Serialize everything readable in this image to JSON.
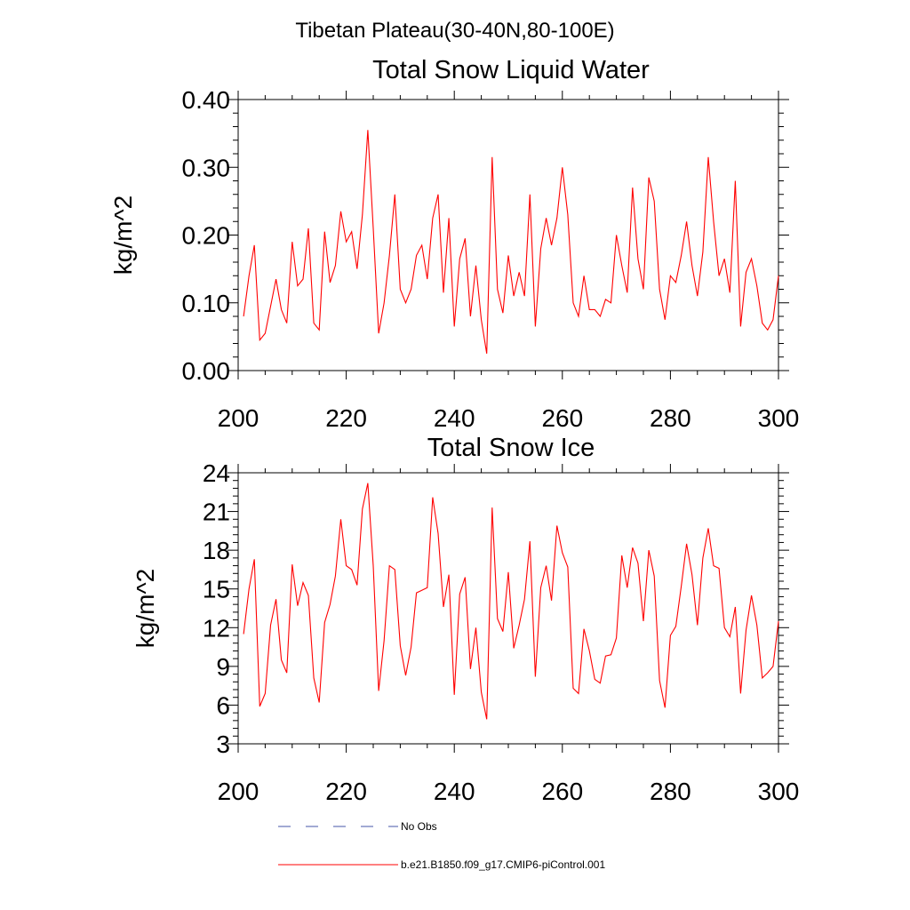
{
  "figure": {
    "title": "Tibetan Plateau(30-40N,80-100E)"
  },
  "chart_data": [
    {
      "type": "line",
      "title": "Total Snow Liquid Water",
      "xlabel": "",
      "ylabel": "kg/m^2",
      "xlim": [
        200,
        300
      ],
      "ylim": [
        0,
        0.4
      ],
      "xticks": [
        200,
        220,
        240,
        260,
        280,
        300
      ],
      "xtick_labels": [
        "200",
        "220",
        "240",
        "260",
        "280",
        "300"
      ],
      "yticks": [
        0,
        0.1,
        0.2,
        0.3,
        0.4
      ],
      "ytick_labels": [
        "0.00",
        "0.10",
        "0.20",
        "0.30",
        "0.40"
      ],
      "grid": false,
      "x": [
        201,
        202,
        203,
        204,
        205,
        206,
        207,
        208,
        209,
        210,
        211,
        212,
        213,
        214,
        215,
        216,
        217,
        218,
        219,
        220,
        221,
        222,
        223,
        224,
        225,
        226,
        227,
        228,
        229,
        230,
        231,
        232,
        233,
        234,
        235,
        236,
        237,
        238,
        239,
        240,
        241,
        242,
        243,
        244,
        245,
        246,
        247,
        248,
        249,
        250,
        251,
        252,
        253,
        254,
        255,
        256,
        257,
        258,
        259,
        260,
        261,
        262,
        263,
        264,
        265,
        266,
        267,
        268,
        269,
        270,
        271,
        272,
        273,
        274,
        275,
        276,
        277,
        278,
        279,
        280,
        281,
        282,
        283,
        284,
        285,
        286,
        287,
        288,
        289,
        290,
        291,
        292,
        293,
        294,
        295,
        296,
        297,
        298,
        299,
        300
      ],
      "series": [
        {
          "name": "b.e21.B1850.f09_g17.CMIP6-piControl.001",
          "color": "#ff0000",
          "values": [
            0.08,
            0.14,
            0.185,
            0.045,
            0.055,
            0.095,
            0.135,
            0.09,
            0.07,
            0.19,
            0.125,
            0.135,
            0.21,
            0.07,
            0.06,
            0.205,
            0.13,
            0.155,
            0.235,
            0.19,
            0.205,
            0.15,
            0.23,
            0.355,
            0.21,
            0.055,
            0.1,
            0.17,
            0.26,
            0.12,
            0.1,
            0.12,
            0.17,
            0.185,
            0.135,
            0.225,
            0.26,
            0.115,
            0.225,
            0.065,
            0.165,
            0.195,
            0.08,
            0.155,
            0.075,
            0.025,
            0.315,
            0.12,
            0.085,
            0.17,
            0.11,
            0.145,
            0.11,
            0.26,
            0.065,
            0.18,
            0.225,
            0.185,
            0.225,
            0.3,
            0.23,
            0.1,
            0.08,
            0.14,
            0.09,
            0.09,
            0.08,
            0.105,
            0.1,
            0.2,
            0.155,
            0.115,
            0.27,
            0.165,
            0.12,
            0.285,
            0.25,
            0.12,
            0.075,
            0.14,
            0.13,
            0.17,
            0.22,
            0.155,
            0.11,
            0.175,
            0.315,
            0.22,
            0.14,
            0.165,
            0.115,
            0.28,
            0.065,
            0.145,
            0.165,
            0.125,
            0.07,
            0.06,
            0.075,
            0.14
          ]
        }
      ]
    },
    {
      "type": "line",
      "title": "Total Snow Ice",
      "xlabel": "",
      "ylabel": "kg/m^2",
      "xlim": [
        200,
        300
      ],
      "ylim": [
        3,
        24
      ],
      "xticks": [
        200,
        220,
        240,
        260,
        280,
        300
      ],
      "xtick_labels": [
        "200",
        "220",
        "240",
        "260",
        "280",
        "300"
      ],
      "yticks": [
        3,
        6,
        9,
        12,
        15,
        18,
        21,
        24
      ],
      "ytick_labels": [
        "3",
        "6",
        "9",
        "12",
        "15",
        "18",
        "21",
        "24"
      ],
      "grid": false,
      "x": [
        201,
        202,
        203,
        204,
        205,
        206,
        207,
        208,
        209,
        210,
        211,
        212,
        213,
        214,
        215,
        216,
        217,
        218,
        219,
        220,
        221,
        222,
        223,
        224,
        225,
        226,
        227,
        228,
        229,
        230,
        231,
        232,
        233,
        234,
        235,
        236,
        237,
        238,
        239,
        240,
        241,
        242,
        243,
        244,
        245,
        246,
        247,
        248,
        249,
        250,
        251,
        252,
        253,
        254,
        255,
        256,
        257,
        258,
        259,
        260,
        261,
        262,
        263,
        264,
        265,
        266,
        267,
        268,
        269,
        270,
        271,
        272,
        273,
        274,
        275,
        276,
        277,
        278,
        279,
        280,
        281,
        282,
        283,
        284,
        285,
        286,
        287,
        288,
        289,
        290,
        291,
        292,
        293,
        294,
        295,
        296,
        297,
        298,
        299,
        300
      ],
      "series": [
        {
          "name": "b.e21.B1850.f09_g17.CMIP6-piControl.001",
          "color": "#ff0000",
          "values": [
            11.5,
            15,
            17.3,
            5.9,
            6.9,
            12.2,
            14.2,
            9.5,
            8.5,
            16.9,
            13.7,
            15.5,
            14.5,
            8.1,
            6.2,
            12.4,
            13.8,
            16,
            20.4,
            16.8,
            16.5,
            15.3,
            21.2,
            23.2,
            16.8,
            7.1,
            11,
            16.8,
            16.5,
            10.6,
            8.3,
            10.5,
            14.7,
            14.9,
            15.1,
            22.1,
            19.3,
            13.6,
            16.1,
            6.8,
            14.6,
            15.9,
            8.8,
            12,
            7,
            4.9,
            21.3,
            12.7,
            11.7,
            16.3,
            10.4,
            12.2,
            14.2,
            18.7,
            8.2,
            15.1,
            16.8,
            14.1,
            19.9,
            17.8,
            16.7,
            7.3,
            6.9,
            11.9,
            10.2,
            8,
            7.7,
            9.8,
            9.9,
            11.2,
            17.6,
            15.1,
            18.2,
            17,
            12.5,
            18,
            16,
            7.9,
            5.8,
            11.4,
            12.1,
            15.2,
            18.5,
            16.1,
            12.2,
            17.4,
            19.7,
            16.8,
            16.6,
            12,
            11.3,
            13.6,
            6.9,
            11.8,
            14.5,
            12.2,
            8.1,
            8.5,
            9,
            12.5
          ]
        }
      ]
    }
  ],
  "legend": {
    "placement": "bottom",
    "items": [
      {
        "label": "No Obs",
        "color": "#4455aa",
        "style": "dashed"
      },
      {
        "label": "b.e21.B1850.f09_g17.CMIP6-piControl.001",
        "color": "#ff0000",
        "style": "solid"
      }
    ]
  }
}
